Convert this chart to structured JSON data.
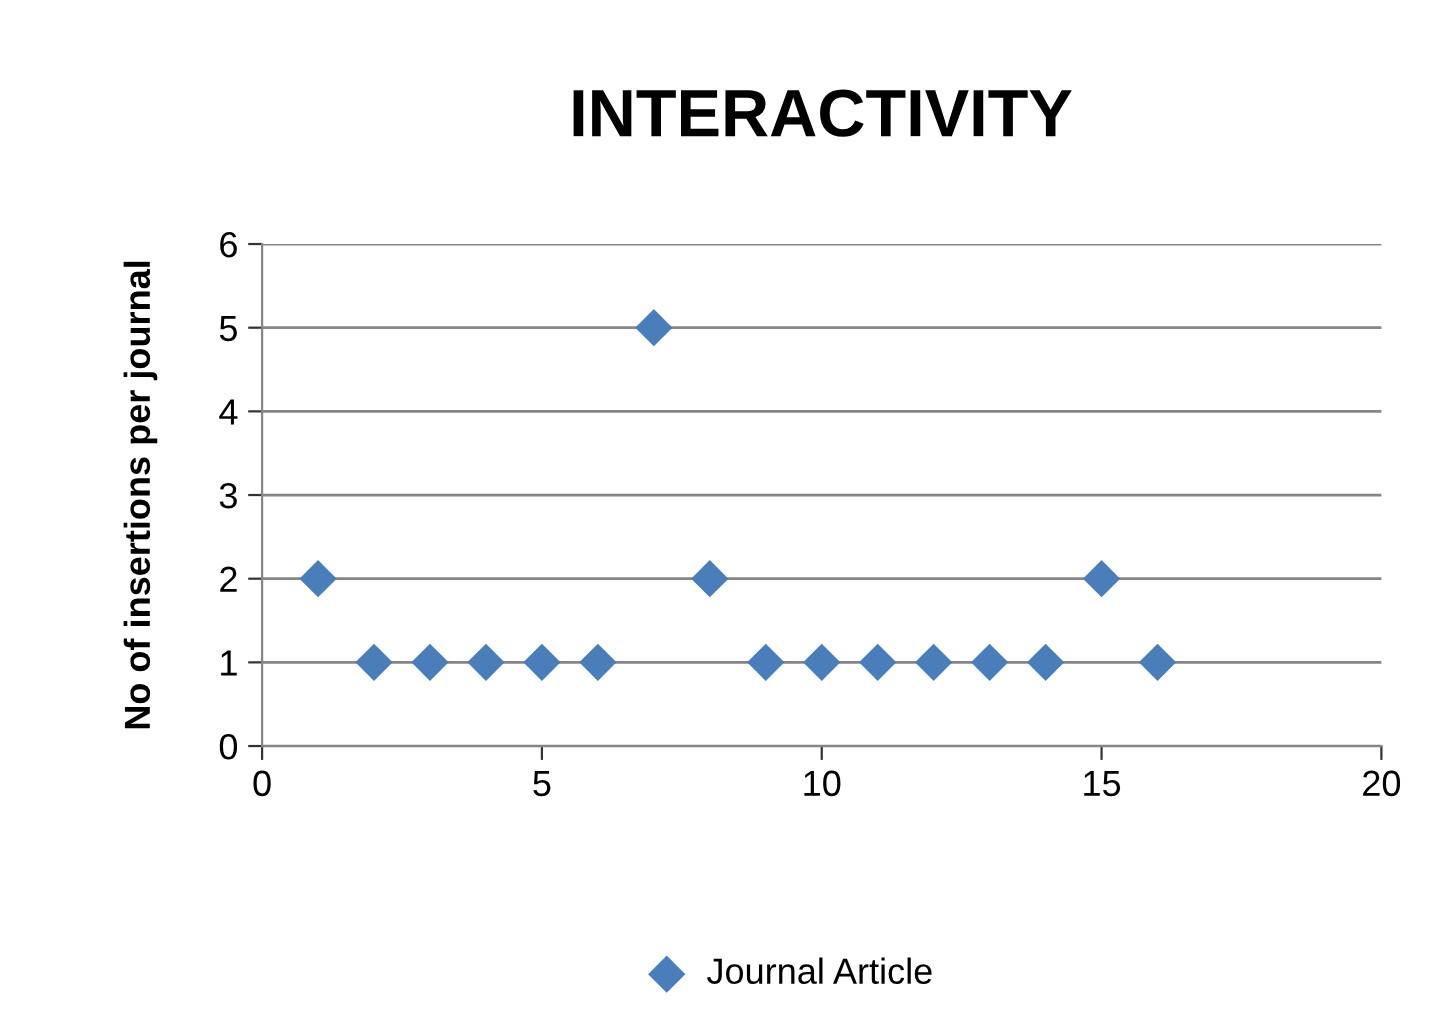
{
  "chart_data": {
    "type": "scatter",
    "title": "INTERACTIVITY",
    "ylabel": "No of insertions per journal",
    "series": [
      {
        "name": "Journal Article",
        "color": "#4a7ebb",
        "x": [
          1,
          2,
          3,
          4,
          5,
          6,
          7,
          8,
          9,
          10,
          11,
          12,
          13,
          14,
          15,
          16
        ],
        "values": [
          2,
          1,
          1,
          1,
          1,
          1,
          5,
          2,
          1,
          1,
          1,
          1,
          1,
          1,
          2,
          1
        ]
      }
    ],
    "xlim": [
      0,
      20
    ],
    "xticks": [
      0,
      5,
      10,
      15,
      20
    ],
    "ylim": [
      0,
      6
    ],
    "yticks": [
      0,
      1,
      2,
      3,
      4,
      5,
      6
    ],
    "grid": "y",
    "legend": "bottom",
    "marker": "diamond"
  }
}
